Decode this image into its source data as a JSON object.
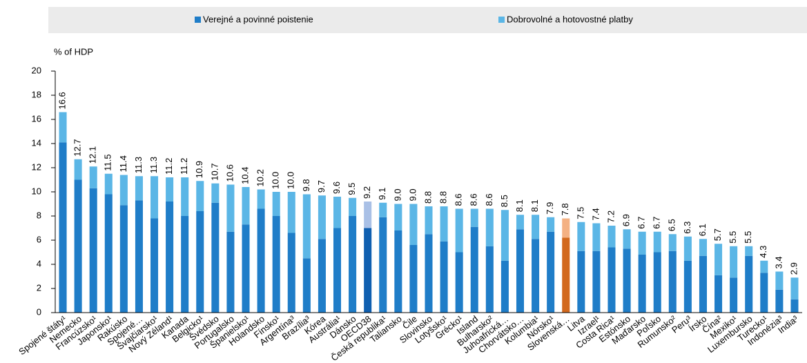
{
  "chart_data": {
    "type": "stacked_bar",
    "y_label": "% of HDP",
    "categories": [
      "Spojené štáty¹",
      "Nemecko",
      "Francúzsko¹",
      "Japonsko¹",
      "Rakúsko",
      "Spojené…",
      "Švajčiarsko¹",
      "Nový Zéland¹",
      "Kanada",
      "Belgicko¹",
      "Švédsko",
      "Portugalsko",
      "Španielsko¹",
      "Holandsko",
      "Fínsko¹",
      "Argentína³",
      "Brazília³",
      "Kórea",
      "Austrália¹",
      "Dánsko",
      "OECD38",
      "Česká republika¹",
      "Taliansko",
      "Čile",
      "Slovinsko",
      "Lotyšsko¹",
      "Grécko¹",
      "Island",
      "Bulharsko²",
      "Juhoafrická…",
      "Chorvátsko…",
      "Kolumbia¹",
      "Nórsko¹",
      "Slovenská…",
      "Litva",
      "Izrael¹",
      "Costa Rica¹",
      "Estónsko",
      "Maďarsko",
      "Poľsko",
      "Rumunsko²",
      "Peru³",
      "Írsko",
      "Čína²",
      "Mexiko¹",
      "Luxembursko",
      "Turecko¹",
      "Indonézia³",
      "India³"
    ],
    "series": [
      {
        "name": "Verejné a povinné poistenie",
        "color": "#1f7dc8",
        "values": [
          14.1,
          11.0,
          10.3,
          9.8,
          8.9,
          9.3,
          7.8,
          9.2,
          8.0,
          8.4,
          9.1,
          6.7,
          7.3,
          8.6,
          8.0,
          6.6,
          4.5,
          6.1,
          7.0,
          8.0,
          7.0,
          7.9,
          6.8,
          5.6,
          6.5,
          5.9,
          5.0,
          7.1,
          5.5,
          4.3,
          6.9,
          6.1,
          6.7,
          6.2,
          5.1,
          5.1,
          5.4,
          5.3,
          4.8,
          5.0,
          5.1,
          4.3,
          4.7,
          3.1,
          2.9,
          4.7,
          3.3,
          1.9,
          1.1
        ]
      },
      {
        "name": "Dobrovolné a hotovostné platby",
        "color": "#5bb6e6",
        "values": [
          2.5,
          1.7,
          1.8,
          1.7,
          2.5,
          2.0,
          3.5,
          2.0,
          3.2,
          2.5,
          1.6,
          3.9,
          3.1,
          1.6,
          2.0,
          3.4,
          5.3,
          3.6,
          2.6,
          1.5,
          2.2,
          1.2,
          2.2,
          3.4,
          2.3,
          2.9,
          3.6,
          1.5,
          3.1,
          4.2,
          1.2,
          2.0,
          1.2,
          1.6,
          2.4,
          2.3,
          1.8,
          1.6,
          1.9,
          1.7,
          1.4,
          2.0,
          1.4,
          2.6,
          2.6,
          0.8,
          1.0,
          1.5,
          1.8
        ]
      }
    ],
    "totals": [
      16.6,
      12.7,
      12.1,
      11.5,
      11.4,
      11.3,
      11.3,
      11.2,
      11.2,
      10.9,
      10.7,
      10.6,
      10.4,
      10.2,
      10.0,
      10.0,
      9.8,
      9.7,
      9.6,
      9.5,
      9.2,
      9.1,
      9.0,
      9.0,
      8.8,
      8.8,
      8.6,
      8.6,
      8.6,
      8.5,
      8.1,
      8.1,
      7.9,
      7.8,
      7.5,
      7.4,
      7.2,
      6.9,
      6.7,
      6.7,
      6.5,
      6.3,
      6.1,
      5.7,
      5.5,
      5.5,
      4.3,
      3.4,
      2.9
    ],
    "total_labels": [
      "16.6",
      "12.7",
      "12.1",
      "11.5",
      "11.4",
      "11.3",
      "11.3",
      "11.2",
      "11.2",
      "10.9",
      "10.7",
      "10.6",
      "10.4",
      "10.2",
      "10.0",
      "10.0",
      "9.8",
      "9.7",
      "9.6",
      "9.5",
      "9.2",
      "9.1",
      "9.0",
      "9.0",
      "8.8",
      "8.8",
      "8.6",
      "8.6",
      "8.6",
      "8.5",
      "8.1",
      "8.1",
      "7.9",
      "7.8",
      "7.5",
      "7.4",
      "7.2",
      "6.9",
      "6.7",
      "6.7",
      "6.5",
      "6.3",
      "6.1",
      "5.7",
      "5.5",
      "5.5",
      "4.3",
      "3.4",
      "2.9"
    ],
    "highlights": [
      {
        "index": 20,
        "colors": [
          "#0f5fb0",
          "#a9c0e6"
        ]
      },
      {
        "index": 33,
        "colors": [
          "#d2691e",
          "#f4b183"
        ]
      }
    ],
    "ylim": [
      0,
      20
    ],
    "yticks": [
      0,
      2,
      4,
      6,
      8,
      10,
      12,
      14,
      16,
      18,
      20
    ],
    "legend": "top"
  }
}
